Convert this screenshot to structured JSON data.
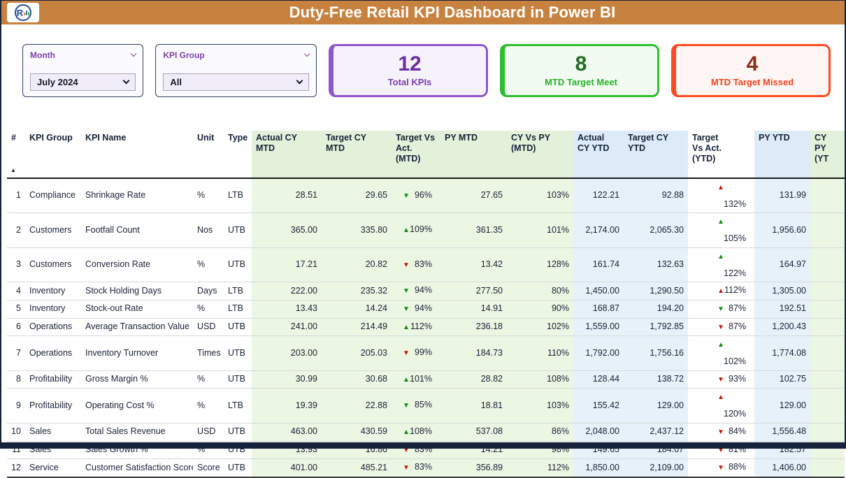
{
  "theme": {
    "header_bg": "#C8823F",
    "navy": "#16213C",
    "purple": "#7A3FA8",
    "good": "#0F8A0F",
    "bad": "#C21807",
    "mtd_bg": "#EBF6E3",
    "mtd_bg_h": "#E4F1DA",
    "ytd_bg": "#E6F1FA",
    "ytd_bg_h": "#DCEBF7",
    "c_total_border": "#8E55C8",
    "c_total_bg": "#F6F2FB",
    "c_total_num": "#6B2FA0",
    "c_total_label": "#7A3FA8",
    "c_meet_border": "#2FBE2F",
    "c_meet_bg": "#F2FBF2",
    "c_meet_num": "#1F6B1F",
    "c_meet_label": "#28B428",
    "c_missed_border": "#FF4B22",
    "c_missed_bg": "#FEF6F4",
    "c_missed_num": "#8A2F1D",
    "c_missed_label": "#F0431C"
  },
  "icons": {
    "arrow_up": "▲",
    "arrow_down": "▼",
    "sort_ascending": "▲",
    "logo_letter": "R"
  },
  "header": {
    "title": "Duty-Free Retail KPI Dashboard in Power BI"
  },
  "filters": {
    "month": {
      "label": "Month",
      "value": "July 2024"
    },
    "kpi_group": {
      "label": "KPI Group",
      "value": "All"
    }
  },
  "cards": {
    "total": {
      "value": "12",
      "label": "Total KPIs"
    },
    "meet": {
      "value": "8",
      "label": "MTD Target Meet"
    },
    "missed": {
      "value": "4",
      "label": "MTD Target Missed"
    }
  },
  "table": {
    "columns": [
      {
        "key": "n",
        "lines": [
          "#"
        ],
        "section": "plain",
        "align": "right"
      },
      {
        "key": "group",
        "lines": [
          "KPI Group"
        ],
        "section": "plain",
        "align": "left"
      },
      {
        "key": "name",
        "lines": [
          "KPI Name"
        ],
        "section": "plain",
        "align": "left"
      },
      {
        "key": "unit",
        "lines": [
          "Unit"
        ],
        "section": "plain",
        "align": "left"
      },
      {
        "key": "type",
        "lines": [
          "Type"
        ],
        "section": "plain",
        "align": "left"
      },
      {
        "key": "actual_mtd",
        "lines": [
          "Actual CY",
          "MTD"
        ],
        "section": "mtd",
        "align": "right"
      },
      {
        "key": "target_mtd",
        "lines": [
          "Target CY",
          "MTD"
        ],
        "section": "mtd",
        "align": "right"
      },
      {
        "key": "tva_mtd",
        "lines": [
          "Target Vs",
          "Act.",
          "(MTD)"
        ],
        "section": "mtd",
        "align": "indicator"
      },
      {
        "key": "py_mtd",
        "lines": [
          "PY MTD"
        ],
        "section": "mtd",
        "align": "right"
      },
      {
        "key": "cy_py_mtd",
        "lines": [
          "CY Vs PY",
          "(MTD)"
        ],
        "section": "mtd",
        "align": "right"
      },
      {
        "key": "actual_ytd",
        "lines": [
          "Actual",
          "CY YTD"
        ],
        "section": "ytd",
        "align": "right"
      },
      {
        "key": "target_ytd",
        "lines": [
          "Target CY",
          "YTD"
        ],
        "section": "ytd",
        "align": "right"
      },
      {
        "key": "tva_ytd",
        "lines": [
          "Target",
          "Vs Act.",
          "(YTD)"
        ],
        "section": "plain",
        "align": "indicator"
      },
      {
        "key": "py_ytd",
        "lines": [
          "PY YTD"
        ],
        "section": "ytd",
        "align": "right"
      },
      {
        "key": "cy_py_ytd",
        "lines": [
          "CY",
          "PY",
          "(YT"
        ],
        "section": "mtd",
        "align": "right"
      }
    ],
    "rows": [
      {
        "n": "1",
        "group": "Compliance",
        "name": "Shrinkage Rate",
        "unit": "%",
        "type": "LTB",
        "actual_mtd": "28.51",
        "target_mtd": "29.65",
        "tva_mtd": {
          "dir": "down",
          "status": "good",
          "pct": "96%"
        },
        "py_mtd": "27.65",
        "cy_py_mtd": "103%",
        "actual_ytd": "122.21",
        "target_ytd": "92.88",
        "tva_ytd": {
          "dir": "up",
          "status": "bad",
          "pct": "132%"
        },
        "py_ytd": "131.99",
        "cy_py_ytd": ""
      },
      {
        "n": "2",
        "group": "Customers",
        "name": "Footfall Count",
        "unit": "Nos",
        "type": "UTB",
        "actual_mtd": "365.00",
        "target_mtd": "335.80",
        "tva_mtd": {
          "dir": "up",
          "status": "good",
          "pct": "109%"
        },
        "py_mtd": "361.35",
        "cy_py_mtd": "101%",
        "actual_ytd": "2,174.00",
        "target_ytd": "2,065.30",
        "tva_ytd": {
          "dir": "up",
          "status": "good",
          "pct": "105%"
        },
        "py_ytd": "1,956.60",
        "cy_py_ytd": ""
      },
      {
        "n": "3",
        "group": "Customers",
        "name": "Conversion Rate",
        "unit": "%",
        "type": "UTB",
        "actual_mtd": "17.21",
        "target_mtd": "20.82",
        "tva_mtd": {
          "dir": "down",
          "status": "bad",
          "pct": "83%"
        },
        "py_mtd": "13.42",
        "cy_py_mtd": "128%",
        "actual_ytd": "161.74",
        "target_ytd": "132.63",
        "tva_ytd": {
          "dir": "up",
          "status": "good",
          "pct": "122%"
        },
        "py_ytd": "164.97",
        "cy_py_ytd": ""
      },
      {
        "n": "4",
        "group": "Inventory",
        "name": "Stock Holding Days",
        "unit": "Days",
        "type": "LTB",
        "actual_mtd": "222.00",
        "target_mtd": "235.32",
        "tva_mtd": {
          "dir": "down",
          "status": "good",
          "pct": "94%"
        },
        "py_mtd": "277.50",
        "cy_py_mtd": "80%",
        "actual_ytd": "1,450.00",
        "target_ytd": "1,290.50",
        "tva_ytd": {
          "dir": "up",
          "status": "bad",
          "pct": "112%"
        },
        "py_ytd": "1,305.00",
        "cy_py_ytd": ""
      },
      {
        "n": "5",
        "group": "Inventory",
        "name": "Stock-out Rate",
        "unit": "%",
        "type": "LTB",
        "actual_mtd": "13.43",
        "target_mtd": "14.24",
        "tva_mtd": {
          "dir": "down",
          "status": "good",
          "pct": "94%"
        },
        "py_mtd": "14.91",
        "cy_py_mtd": "90%",
        "actual_ytd": "168.87",
        "target_ytd": "194.20",
        "tva_ytd": {
          "dir": "down",
          "status": "good",
          "pct": "87%"
        },
        "py_ytd": "192.51",
        "cy_py_ytd": ""
      },
      {
        "n": "6",
        "group": "Operations",
        "name": "Average Transaction Value",
        "unit": "USD",
        "type": "UTB",
        "actual_mtd": "241.00",
        "target_mtd": "214.49",
        "tva_mtd": {
          "dir": "up",
          "status": "good",
          "pct": "112%"
        },
        "py_mtd": "236.18",
        "cy_py_mtd": "102%",
        "actual_ytd": "1,559.00",
        "target_ytd": "1,792.85",
        "tva_ytd": {
          "dir": "down",
          "status": "bad",
          "pct": "87%"
        },
        "py_ytd": "1,200.43",
        "cy_py_ytd": ""
      },
      {
        "n": "7",
        "group": "Operations",
        "name": "Inventory Turnover",
        "unit": "Times",
        "type": "UTB",
        "actual_mtd": "203.00",
        "target_mtd": "205.03",
        "tva_mtd": {
          "dir": "down",
          "status": "bad",
          "pct": "99%"
        },
        "py_mtd": "184.73",
        "cy_py_mtd": "110%",
        "actual_ytd": "1,792.00",
        "target_ytd": "1,756.16",
        "tva_ytd": {
          "dir": "up",
          "status": "good",
          "pct": "102%"
        },
        "py_ytd": "1,774.08",
        "cy_py_ytd": ""
      },
      {
        "n": "8",
        "group": "Profitability",
        "name": "Gross Margin %",
        "unit": "%",
        "type": "UTB",
        "actual_mtd": "30.99",
        "target_mtd": "30.68",
        "tva_mtd": {
          "dir": "up",
          "status": "good",
          "pct": "101%"
        },
        "py_mtd": "28.82",
        "cy_py_mtd": "108%",
        "actual_ytd": "128.44",
        "target_ytd": "138.72",
        "tva_ytd": {
          "dir": "down",
          "status": "bad",
          "pct": "93%"
        },
        "py_ytd": "102.75",
        "cy_py_ytd": ""
      },
      {
        "n": "9",
        "group": "Profitability",
        "name": "Operating Cost %",
        "unit": "%",
        "type": "LTB",
        "actual_mtd": "19.39",
        "target_mtd": "22.88",
        "tva_mtd": {
          "dir": "down",
          "status": "good",
          "pct": "85%"
        },
        "py_mtd": "18.81",
        "cy_py_mtd": "103%",
        "actual_ytd": "155.42",
        "target_ytd": "129.00",
        "tva_ytd": {
          "dir": "up",
          "status": "bad",
          "pct": "120%"
        },
        "py_ytd": "129.00",
        "cy_py_ytd": ""
      },
      {
        "n": "10",
        "group": "Sales",
        "name": "Total Sales Revenue",
        "unit": "USD",
        "type": "UTB",
        "actual_mtd": "463.00",
        "target_mtd": "430.59",
        "tva_mtd": {
          "dir": "up",
          "status": "good",
          "pct": "108%"
        },
        "py_mtd": "537.08",
        "cy_py_mtd": "86%",
        "actual_ytd": "2,048.00",
        "target_ytd": "2,437.12",
        "tva_ytd": {
          "dir": "down",
          "status": "bad",
          "pct": "84%"
        },
        "py_ytd": "1,556.48",
        "cy_py_ytd": ""
      },
      {
        "n": "11",
        "group": "Sales",
        "name": "Sales Growth %",
        "unit": "%",
        "type": "UTB",
        "actual_mtd": "13.93",
        "target_mtd": "16.86",
        "tva_mtd": {
          "dir": "down",
          "status": "bad",
          "pct": "83%"
        },
        "py_mtd": "14.21",
        "cy_py_mtd": "98%",
        "actual_ytd": "149.65",
        "target_ytd": "184.07",
        "tva_ytd": {
          "dir": "down",
          "status": "bad",
          "pct": "81%"
        },
        "py_ytd": "182.57",
        "cy_py_ytd": ""
      },
      {
        "n": "12",
        "group": "Service",
        "name": "Customer Satisfaction Score",
        "unit": "Score",
        "type": "UTB",
        "actual_mtd": "401.00",
        "target_mtd": "485.21",
        "tva_mtd": {
          "dir": "down",
          "status": "bad",
          "pct": "83%"
        },
        "py_mtd": "356.89",
        "cy_py_mtd": "112%",
        "actual_ytd": "1,850.00",
        "target_ytd": "2,109.00",
        "tva_ytd": {
          "dir": "down",
          "status": "bad",
          "pct": "88%"
        },
        "py_ytd": "1,406.00",
        "cy_py_ytd": ""
      }
    ]
  }
}
